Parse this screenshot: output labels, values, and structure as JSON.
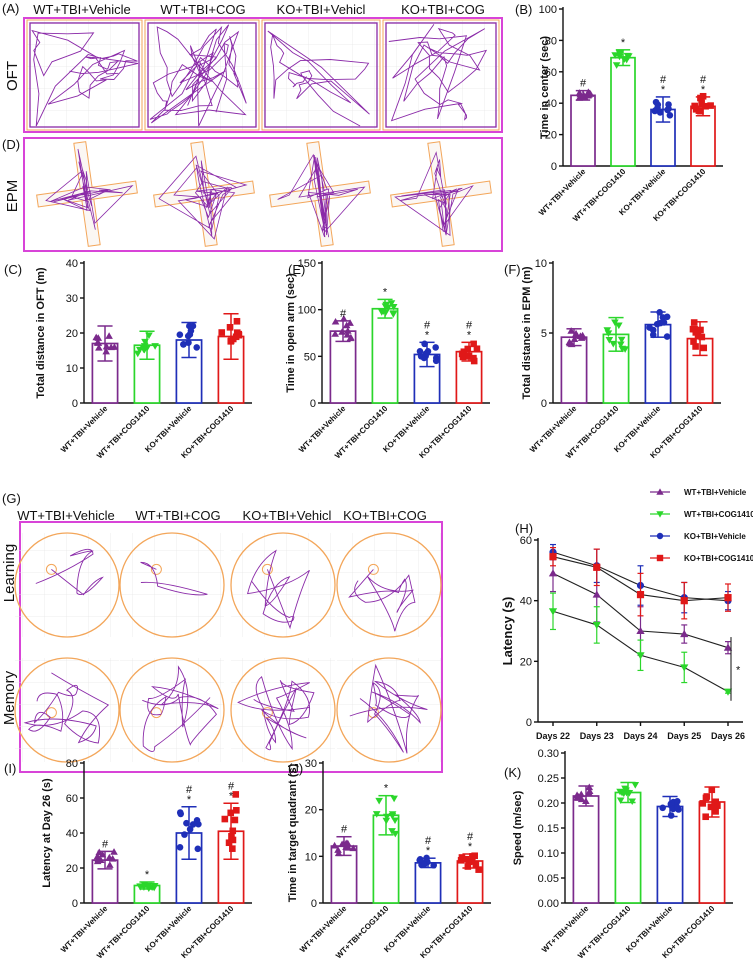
{
  "colors": {
    "purple": "#7b2a8c",
    "green": "#2bd62b",
    "blue": "#1f2fb8",
    "red": "#e01818",
    "frame": "#d844d8",
    "track": "#8a2aa8",
    "orange": "#f3a65a"
  },
  "panel_labels": {
    "A": "(A)",
    "B": "(B)",
    "C": "(C)",
    "D": "(D)",
    "E": "(E)",
    "F": "(F)",
    "G": "(G)",
    "H": "(H)",
    "I": "(I)",
    "J": "(J)",
    "K": "(K)"
  },
  "groups_short": [
    "WT+TBI+Vehicle",
    "WT+TBI+COG",
    "KO+TBI+Vehicl",
    "KO+TBI+COG"
  ],
  "groups": [
    "WT+TBI+Vehicle",
    "WT+TBI+COG1410",
    "KO+TBI+Vehicle",
    "KO+TBI+COG1410"
  ],
  "row_labels": {
    "oft": "OFT",
    "epm": "EPM",
    "learning": "Learning",
    "memory": "Memory"
  },
  "chart_data": [
    {
      "id": "B",
      "type": "bar",
      "title": "",
      "ylabel": "Time in center (sec)",
      "ylim": [
        0,
        100
      ],
      "yticks": [
        0,
        20,
        40,
        60,
        80,
        100
      ],
      "categories": [
        "WT+TBI+Vehicle",
        "WT+TBI+COG1410",
        "KO+TBI+Vehicle",
        "KO+TBI+COG1410"
      ],
      "values": [
        45,
        69,
        36,
        38
      ],
      "errors": [
        3,
        5,
        8,
        6
      ],
      "annotations": [
        [
          "#"
        ],
        [
          "*"
        ],
        [
          "#",
          "*"
        ],
        [
          "#",
          "*"
        ]
      ]
    },
    {
      "id": "C",
      "type": "bar",
      "title": "",
      "ylabel": "Total distance in OFT (m)",
      "ylim": [
        0,
        40
      ],
      "yticks": [
        0,
        10,
        20,
        30,
        40
      ],
      "categories": [
        "WT+TBI+Vehicle",
        "WT+TBI+COG1410",
        "KO+TBI+Vehicle",
        "KO+TBI+COG1410"
      ],
      "values": [
        17,
        16.5,
        18,
        19
      ],
      "errors": [
        5,
        4,
        5,
        6.5
      ],
      "annotations": [
        [],
        [],
        [],
        []
      ]
    },
    {
      "id": "E",
      "type": "bar",
      "title": "",
      "ylabel": "Time in open arm (sec)",
      "ylim": [
        0,
        150
      ],
      "yticks": [
        0,
        50,
        100,
        150
      ],
      "categories": [
        "WT+TBI+Vehicle",
        "WT+TBI+COG1410",
        "KO+TBI+Vehicle",
        "KO+TBI+COG1410"
      ],
      "values": [
        77,
        101,
        52,
        55
      ],
      "errors": [
        11,
        10,
        13,
        10
      ],
      "annotations": [
        [
          "#"
        ],
        [
          "*"
        ],
        [
          "#",
          "*"
        ],
        [
          "#",
          "*"
        ]
      ]
    },
    {
      "id": "F",
      "type": "bar",
      "title": "",
      "ylabel": "Total distance in EPM (m)",
      "ylim": [
        0,
        10
      ],
      "yticks": [
        0,
        5,
        10
      ],
      "categories": [
        "WT+TBI+Vehicle",
        "WT+TBI+COG1410",
        "KO+TBI+Vehicle",
        "KO+TBI+COG1410"
      ],
      "values": [
        4.7,
        4.9,
        5.6,
        4.6
      ],
      "errors": [
        0.6,
        1.2,
        0.9,
        1.2
      ],
      "annotations": [
        [],
        [],
        [],
        []
      ]
    },
    {
      "id": "H",
      "type": "line",
      "title": "",
      "xlabel": "",
      "ylabel": "Latency (s)",
      "ylim": [
        0,
        60
      ],
      "yticks": [
        0,
        20,
        40,
        60
      ],
      "x": [
        "Days 22",
        "Days 23",
        "Days 24",
        "Days 25",
        "Days 26"
      ],
      "series": [
        {
          "name": "WT+TBI+Vehicle",
          "marker": "triangle-up",
          "values": [
            49,
            42,
            30,
            29,
            24.5
          ],
          "errors": [
            6,
            9,
            8,
            3,
            2
          ]
        },
        {
          "name": "WT+TBI+COG1410",
          "marker": "triangle-down",
          "values": [
            36.5,
            32,
            22,
            18,
            10
          ],
          "errors": [
            6,
            6,
            5,
            5,
            0.5
          ]
        },
        {
          "name": "KO+TBI+Vehicle",
          "marker": "circle",
          "values": [
            56,
            51.5,
            45,
            41,
            40
          ],
          "errors": [
            2.5,
            5.5,
            6.5,
            5,
            3
          ]
        },
        {
          "name": "KO+TBI+COG1410",
          "marker": "square",
          "values": [
            54.5,
            51,
            42,
            40,
            41
          ],
          "errors": [
            3,
            6,
            7,
            6,
            4.5
          ]
        }
      ],
      "annotations": [
        "*"
      ],
      "legend": "top-right"
    },
    {
      "id": "I",
      "type": "bar",
      "title": "",
      "ylabel": "Latency at Day 26 (s)",
      "ylim": [
        0,
        80
      ],
      "yticks": [
        0,
        20,
        40,
        60,
        80
      ],
      "categories": [
        "WT+TBI+Vehicle",
        "WT+TBI+COG1410",
        "KO+TBI+Vehicle",
        "KO+TBI+COG1410"
      ],
      "values": [
        24.5,
        10,
        40,
        41
      ],
      "errors": [
        5,
        2,
        15,
        16
      ],
      "annotations": [
        [
          "#"
        ],
        [
          "*"
        ],
        [
          "#",
          "*"
        ],
        [
          "#",
          "*"
        ]
      ]
    },
    {
      "id": "J",
      "type": "bar",
      "title": "",
      "ylabel": "Time in target quadrant (s)",
      "ylim": [
        0,
        30
      ],
      "yticks": [
        0,
        10,
        20,
        30
      ],
      "categories": [
        "WT+TBI+Vehicle",
        "WT+TBI+COG1410",
        "KO+TBI+Vehicle",
        "KO+TBI+COG1410"
      ],
      "values": [
        12.2,
        18.8,
        8.6,
        9
      ],
      "errors": [
        2,
        4.2,
        1,
        1.5
      ],
      "annotations": [
        [
          "#"
        ],
        [
          "*"
        ],
        [
          "#",
          "*"
        ],
        [
          "#",
          "*"
        ]
      ]
    },
    {
      "id": "K",
      "type": "bar",
      "title": "",
      "ylabel": "Speed (m/sec)",
      "ylim": [
        0,
        0.3
      ],
      "yticks": [
        0.0,
        0.05,
        0.1,
        0.15,
        0.2,
        0.25,
        0.3
      ],
      "categories": [
        "WT+TBI+Vehicle",
        "WT+TBI+COG1410",
        "KO+TBI+Vehicle",
        "KO+TBI+COG1410"
      ],
      "values": [
        0.214,
        0.221,
        0.193,
        0.202
      ],
      "errors": [
        0.02,
        0.02,
        0.02,
        0.03
      ],
      "annotations": [
        [],
        [],
        [],
        []
      ]
    }
  ]
}
